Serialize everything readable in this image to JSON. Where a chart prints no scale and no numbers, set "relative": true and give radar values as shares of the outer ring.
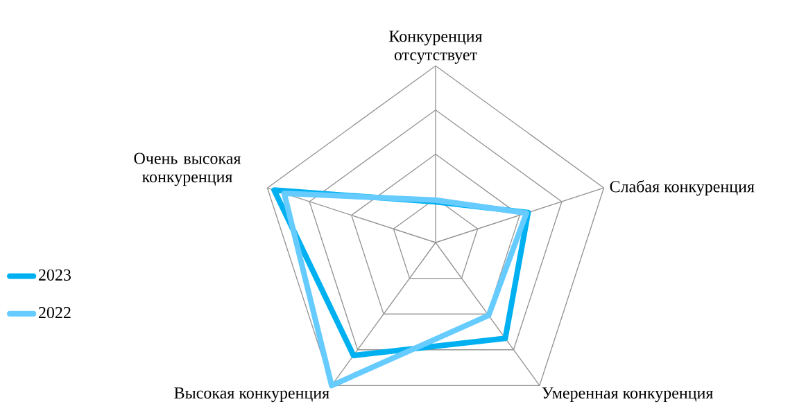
{
  "chart_data": {
    "type": "radar",
    "relative": true,
    "grid": true,
    "legend": "left",
    "categories": [
      "Конкуренция отсутствует",
      "Слабая конкуренция",
      "Умеренная конкуренция",
      "Высокая конкуренция",
      "Очень высокая конкуренция"
    ],
    "series": [
      {
        "name": "2023",
        "color": "#00b0f0",
        "values": [
          0.23,
          0.55,
          0.67,
          0.79,
          0.96
        ]
      },
      {
        "name": "2022",
        "color": "#66ccff",
        "values": [
          0.24,
          0.54,
          0.51,
          1.0,
          0.9
        ]
      }
    ]
  }
}
